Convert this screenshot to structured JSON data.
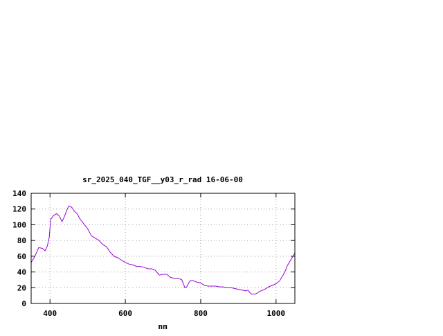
{
  "chart_data": {
    "type": "line",
    "title": "sr_2025_040_TGF__y03_r_rad 16-06-00",
    "xlabel": "nm",
    "ylabel": "",
    "xlim": [
      350,
      1050
    ],
    "ylim": [
      0,
      140
    ],
    "x_ticks": [
      400,
      600,
      800,
      1000
    ],
    "y_ticks": [
      0,
      20,
      40,
      60,
      80,
      100,
      120,
      140
    ],
    "grid": true,
    "series": [
      {
        "color": "#9400d3",
        "points": [
          [
            350,
            52
          ],
          [
            360,
            60
          ],
          [
            370,
            71
          ],
          [
            380,
            70
          ],
          [
            387,
            67
          ],
          [
            393,
            73
          ],
          [
            398,
            84
          ],
          [
            402,
            107
          ],
          [
            410,
            112
          ],
          [
            418,
            114
          ],
          [
            425,
            111
          ],
          [
            432,
            104
          ],
          [
            438,
            110
          ],
          [
            445,
            119
          ],
          [
            450,
            124
          ],
          [
            458,
            122
          ],
          [
            465,
            117
          ],
          [
            472,
            114
          ],
          [
            480,
            107
          ],
          [
            490,
            101
          ],
          [
            500,
            95
          ],
          [
            510,
            86
          ],
          [
            520,
            83
          ],
          [
            530,
            80
          ],
          [
            540,
            75
          ],
          [
            550,
            72
          ],
          [
            560,
            65
          ],
          [
            570,
            60
          ],
          [
            580,
            58
          ],
          [
            590,
            55
          ],
          [
            600,
            52
          ],
          [
            610,
            50
          ],
          [
            620,
            49
          ],
          [
            630,
            47
          ],
          [
            640,
            47
          ],
          [
            650,
            46
          ],
          [
            660,
            44
          ],
          [
            670,
            44
          ],
          [
            680,
            42
          ],
          [
            690,
            36
          ],
          [
            700,
            37
          ],
          [
            710,
            37
          ],
          [
            715,
            35
          ],
          [
            720,
            33
          ],
          [
            730,
            32
          ],
          [
            740,
            32
          ],
          [
            750,
            30
          ],
          [
            758,
            20
          ],
          [
            763,
            21
          ],
          [
            768,
            26
          ],
          [
            772,
            29
          ],
          [
            780,
            29
          ],
          [
            790,
            27
          ],
          [
            800,
            26
          ],
          [
            810,
            23
          ],
          [
            820,
            22
          ],
          [
            830,
            22
          ],
          [
            840,
            22
          ],
          [
            850,
            21
          ],
          [
            860,
            21
          ],
          [
            870,
            20
          ],
          [
            880,
            20
          ],
          [
            890,
            19
          ],
          [
            900,
            18
          ],
          [
            910,
            17
          ],
          [
            920,
            16
          ],
          [
            925,
            17
          ],
          [
            930,
            14
          ],
          [
            935,
            12
          ],
          [
            940,
            12
          ],
          [
            945,
            12
          ],
          [
            950,
            13
          ],
          [
            955,
            15
          ],
          [
            960,
            16
          ],
          [
            970,
            18
          ],
          [
            980,
            21
          ],
          [
            990,
            23
          ],
          [
            1000,
            25
          ],
          [
            1010,
            29
          ],
          [
            1015,
            33
          ],
          [
            1020,
            37
          ],
          [
            1025,
            42
          ],
          [
            1030,
            48
          ],
          [
            1035,
            52
          ],
          [
            1040,
            56
          ],
          [
            1045,
            60
          ],
          [
            1050,
            64
          ]
        ]
      }
    ]
  }
}
